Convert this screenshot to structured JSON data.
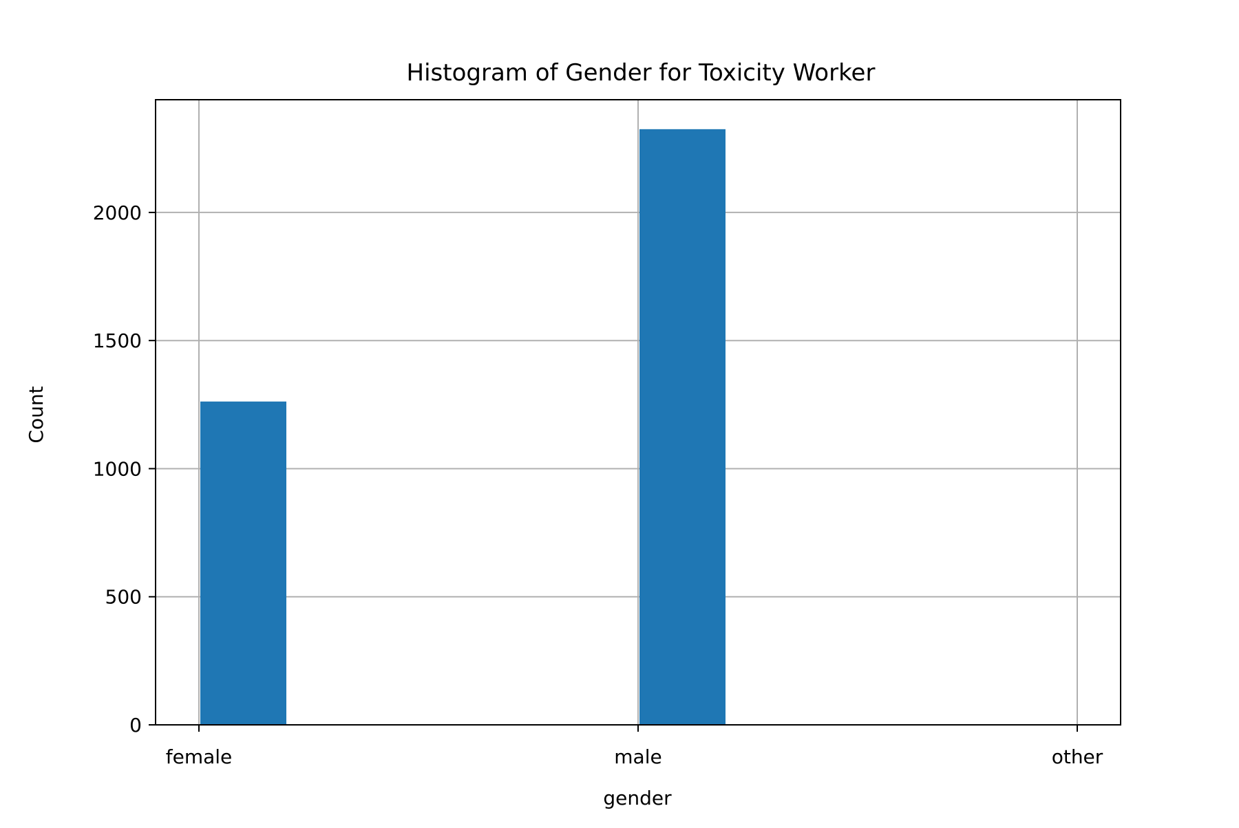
{
  "chart_data": {
    "type": "bar",
    "title": "Histogram of Gender for Toxicity Worker",
    "xlabel": "gender",
    "ylabel": "Count",
    "categories": [
      "female",
      "male",
      "other"
    ],
    "bins": [
      {
        "category": "female",
        "value": 1262
      },
      {
        "category": "male",
        "value": 2325
      },
      {
        "category": "other",
        "value": 0
      }
    ],
    "yticks": [
      0,
      500,
      1000,
      1500,
      2000
    ],
    "ylim": [
      0,
      2440
    ],
    "grid": true,
    "bar_color": "#1f77b4",
    "grid_color": "#b0b0b0"
  }
}
